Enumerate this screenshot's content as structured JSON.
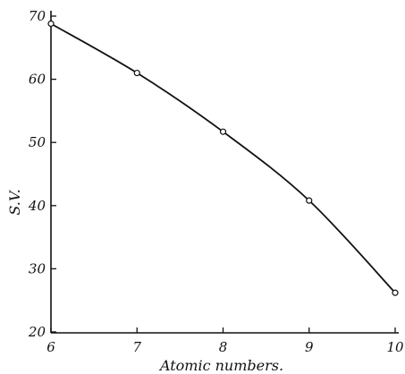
{
  "chart_data": {
    "type": "line",
    "xlabel": "Atomic numbers.",
    "ylabel": "S.V.",
    "xlim": [
      6,
      10
    ],
    "ylim": [
      20,
      70
    ],
    "xticks": [
      6,
      7,
      8,
      9,
      10
    ],
    "yticks": [
      20,
      30,
      40,
      50,
      60,
      70
    ],
    "xtick_labels": [
      "6",
      "7",
      "8",
      "9",
      "10"
    ],
    "ytick_labels": [
      "20",
      "30",
      "40",
      "50",
      "60",
      "70"
    ],
    "grid": false,
    "series": [
      {
        "x": [
          6,
          7,
          8,
          9,
          10
        ],
        "y": [
          68.8,
          61,
          51.7,
          40.8,
          26.2
        ]
      }
    ]
  }
}
